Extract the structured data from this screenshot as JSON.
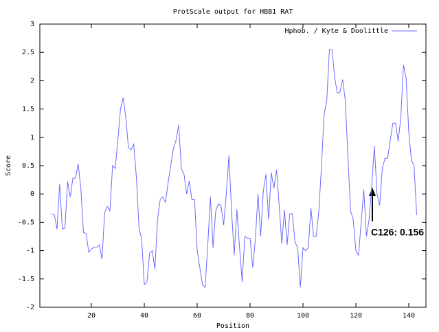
{
  "chart_data": {
    "type": "line",
    "title": "ProtScale output for HBB1 RAT",
    "x_label": "Position",
    "y_label": "Score",
    "annotation": "C126: 0.156",
    "legend": "upper right",
    "grid": false,
    "xlim": [
      0.5,
      146.5
    ],
    "ylim": [
      -2,
      3
    ],
    "xticks": [
      20,
      40,
      60,
      80,
      100,
      120,
      140
    ],
    "yticks": [
      -2,
      -1.5,
      -1,
      -0.5,
      0,
      0.5,
      1,
      1.5,
      2,
      2.5,
      3
    ],
    "x": [
      5,
      6,
      7,
      8,
      9,
      10,
      11,
      12,
      13,
      14,
      15,
      16,
      17,
      18,
      19,
      20,
      21,
      22,
      23,
      24,
      25,
      26,
      27,
      28,
      29,
      30,
      31,
      32,
      33,
      34,
      35,
      36,
      37,
      38,
      39,
      40,
      41,
      42,
      43,
      44,
      45,
      46,
      47,
      48,
      49,
      50,
      51,
      52,
      53,
      54,
      55,
      56,
      57,
      58,
      59,
      60,
      61,
      62,
      63,
      64,
      65,
      66,
      67,
      68,
      69,
      70,
      71,
      72,
      73,
      74,
      75,
      76,
      77,
      78,
      79,
      80,
      81,
      82,
      83,
      84,
      85,
      86,
      87,
      88,
      89,
      90,
      91,
      92,
      93,
      94,
      95,
      96,
      97,
      98,
      99,
      100,
      101,
      102,
      103,
      104,
      105,
      106,
      107,
      108,
      109,
      110,
      111,
      112,
      113,
      114,
      115,
      116,
      117,
      118,
      119,
      120,
      121,
      122,
      123,
      124,
      125,
      126,
      127,
      128,
      129,
      130,
      131,
      132,
      133,
      134,
      135,
      136,
      137,
      138,
      139,
      140,
      141,
      142,
      143
    ],
    "series": [
      {
        "name": "Hphob. / Kyte & Doolittle",
        "color": "#6b6bff",
        "values": [
          -0.35,
          -0.37,
          -0.62,
          0.18,
          -0.62,
          -0.6,
          0.22,
          -0.05,
          0.28,
          0.28,
          0.53,
          0.1,
          -0.68,
          -0.7,
          -1.03,
          -0.97,
          -0.94,
          -0.94,
          -0.9,
          -1.15,
          -0.33,
          -0.22,
          -0.3,
          0.5,
          0.45,
          0.95,
          1.5,
          1.7,
          1.35,
          0.82,
          0.78,
          0.88,
          0.3,
          -0.6,
          -0.8,
          -1.6,
          -1.55,
          -1.05,
          -1.0,
          -1.33,
          -0.45,
          -0.1,
          -0.05,
          -0.15,
          0.2,
          0.5,
          0.8,
          0.95,
          1.22,
          0.45,
          0.35,
          0.0,
          0.23,
          -0.1,
          -0.1,
          -1.0,
          -1.3,
          -1.6,
          -1.65,
          -0.9,
          -0.05,
          -0.95,
          -0.3,
          -0.18,
          -0.2,
          -0.55,
          0.0,
          0.68,
          -0.3,
          -1.08,
          -0.27,
          -0.93,
          -1.55,
          -0.75,
          -0.78,
          -0.78,
          -1.3,
          -0.8,
          0.0,
          -0.75,
          0.05,
          0.35,
          -0.45,
          0.38,
          0.1,
          0.43,
          -0.2,
          -0.88,
          -0.28,
          -0.9,
          -0.35,
          -0.35,
          -0.85,
          -0.95,
          -1.65,
          -0.95,
          -1.0,
          -0.95,
          -0.25,
          -0.75,
          -0.75,
          -0.3,
          0.5,
          1.4,
          1.65,
          2.55,
          2.55,
          2.05,
          1.78,
          1.8,
          2.02,
          1.65,
          0.65,
          -0.3,
          -0.45,
          -1.0,
          -1.08,
          -0.5,
          0.08,
          -0.75,
          -0.45,
          0.156,
          0.85,
          0.0,
          -0.2,
          0.45,
          0.63,
          0.63,
          0.95,
          1.25,
          1.25,
          0.93,
          1.35,
          2.28,
          2.05,
          1.1,
          0.6,
          0.5,
          -0.37
        ]
      }
    ]
  }
}
